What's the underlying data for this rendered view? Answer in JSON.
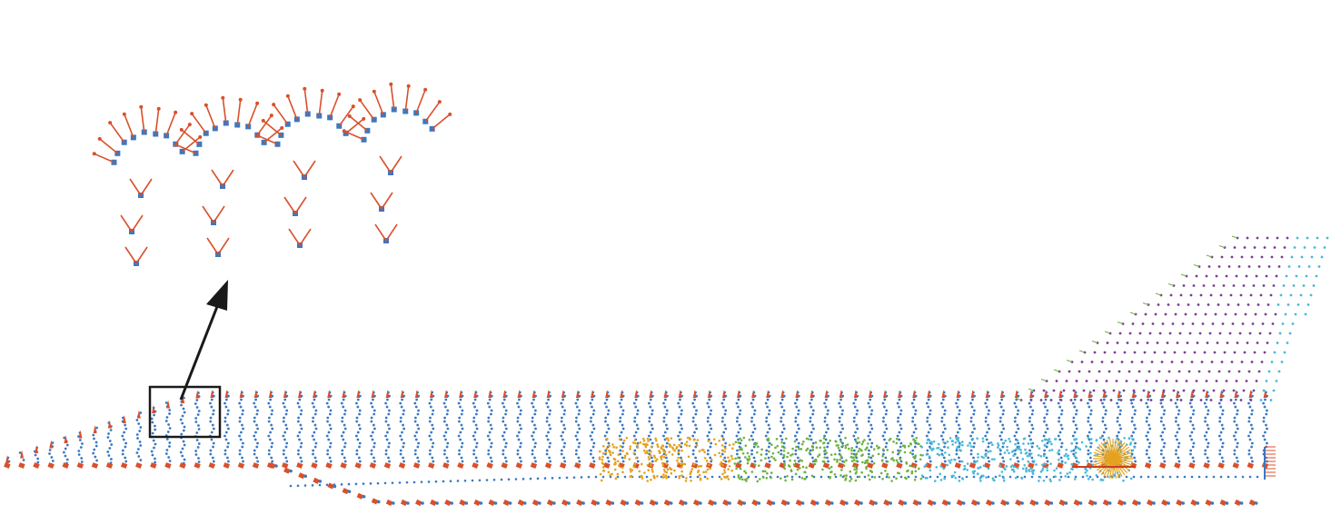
{
  "figure": {
    "description_text": "",
    "colors": {
      "point": "#3a78c2",
      "normal_arrow": "#d9502b",
      "arrow_head_dark": "#c8401f",
      "cluster_yellow": "#e6a21d",
      "cluster_green": "#6db33f",
      "cluster_cyan": "#4bb8d8",
      "cluster_purple": "#7a3d92",
      "indicator": "#1a1a1a"
    },
    "regions": [
      {
        "name": "zoomed-inset",
        "content": "points-with-normal-arrows"
      },
      {
        "name": "main-surface",
        "content": "sinusoidal-surface-point-cloud"
      },
      {
        "name": "fin-region",
        "content": "sparse-purple-cyan-point-grid"
      }
    ]
  }
}
